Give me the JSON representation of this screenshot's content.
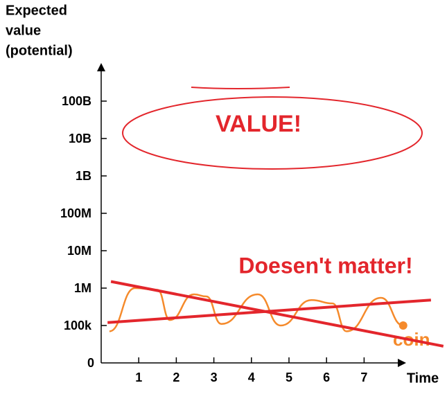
{
  "chart_data": {
    "type": "line",
    "ylabel": [
      "Expected",
      "value",
      "(potential)"
    ],
    "xlabel": "Time",
    "yscale": "log",
    "ylim": [
      0,
      1000000000000
    ],
    "yticks": [
      0,
      {
        "value": 100000,
        "label": "100k"
      },
      {
        "value": 1000000,
        "label": "1M"
      },
      {
        "value": 10000000,
        "label": "10M"
      },
      {
        "value": 100000000,
        "label": "100M"
      },
      {
        "value": 1000000000,
        "label": "1B"
      },
      {
        "value": 10000000000,
        "label": "10B"
      },
      {
        "value": 100000000000,
        "label": "100B"
      }
    ],
    "xlim": [
      0,
      8.1
    ],
    "xticks": [
      1,
      2,
      3,
      4,
      5,
      6,
      7
    ],
    "series": [
      {
        "name": "coin",
        "color": "#f58a2b",
        "x": [
          0.22,
          0.9,
          1.5,
          1.83,
          2.47,
          2.8,
          3.2,
          4.17,
          4.78,
          5.6,
          6.16,
          6.53,
          7.45,
          8.04
        ],
        "values": [
          70000,
          1000000,
          900000,
          140000,
          680000,
          600000,
          110000,
          680000,
          100000,
          480000,
          390000,
          70000,
          550000,
          100000
        ]
      },
      {
        "color": "#e3262c",
        "x": [
          0.26,
          9.11
        ],
        "values": [
          1500000,
          28000
        ]
      },
      {
        "color": "#e3262c",
        "x": [
          0.17,
          8.78
        ],
        "values": [
          120000,
          480000
        ]
      }
    ],
    "annotations": [
      "VALUE!",
      "Doesen't matter!"
    ]
  }
}
